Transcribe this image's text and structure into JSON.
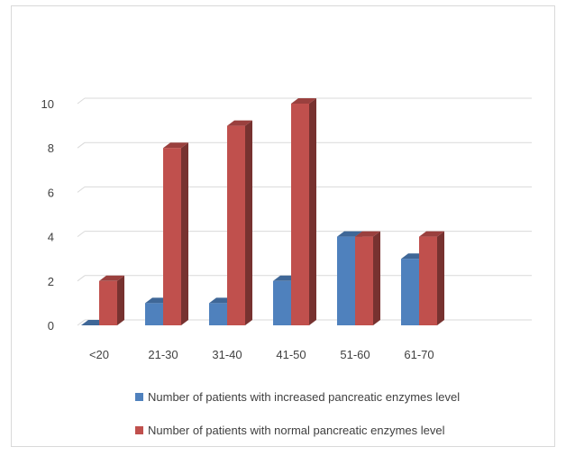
{
  "chart_data": {
    "type": "bar",
    "categories": [
      "<20",
      "21-30",
      "31-40",
      "41-50",
      "51-60",
      "61-70"
    ],
    "series": [
      {
        "name": "Number of patients with increased pancreatic enzymes level",
        "values": [
          0,
          1,
          1,
          2,
          4,
          3
        ],
        "color": "#4f81bd"
      },
      {
        "name": "Number of patients with normal pancreatic enzymes level",
        "values": [
          2,
          8,
          9,
          10,
          4,
          4
        ],
        "color": "#c0504d"
      }
    ],
    "y_ticks": [
      "0",
      "2",
      "4",
      "6",
      "8",
      "10"
    ],
    "ylim": [
      0,
      10
    ],
    "grid": true,
    "legend_position": "bottom",
    "style": "3d-clustered-column"
  }
}
